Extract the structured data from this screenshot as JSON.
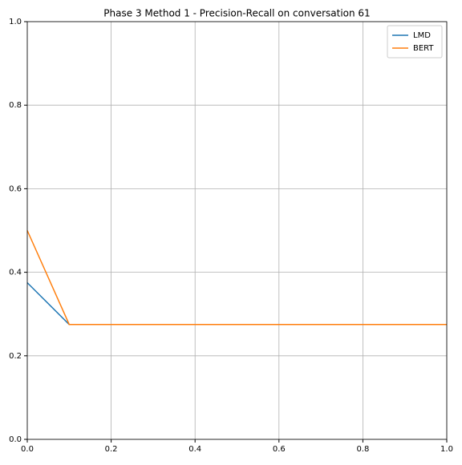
{
  "chart_data": {
    "type": "line",
    "title": "Phase 3 Method 1 - Precision-Recall on conversation 61",
    "x": [
      0,
      0.1,
      1.0
    ],
    "series": [
      {
        "name": "LMD",
        "color": "#1f77b4",
        "values": [
          0.375,
          0.275,
          0.275
        ]
      },
      {
        "name": "BERT",
        "color": "#ff7f0e",
        "values": [
          0.5,
          0.275,
          0.275
        ]
      }
    ],
    "xlim": [
      0,
      1
    ],
    "ylim": [
      0,
      1
    ],
    "xticks": [
      {
        "value": 0,
        "label": "0.0"
      },
      0.2,
      0.4,
      0.6,
      0.8,
      {
        "value": 1,
        "label": "1.0"
      }
    ],
    "yticks": [
      {
        "value": 0,
        "label": "0.0"
      },
      0.2,
      0.4,
      0.6,
      0.8,
      {
        "value": 1,
        "label": "1.0"
      }
    ],
    "grid": true,
    "legend": "upper right"
  }
}
